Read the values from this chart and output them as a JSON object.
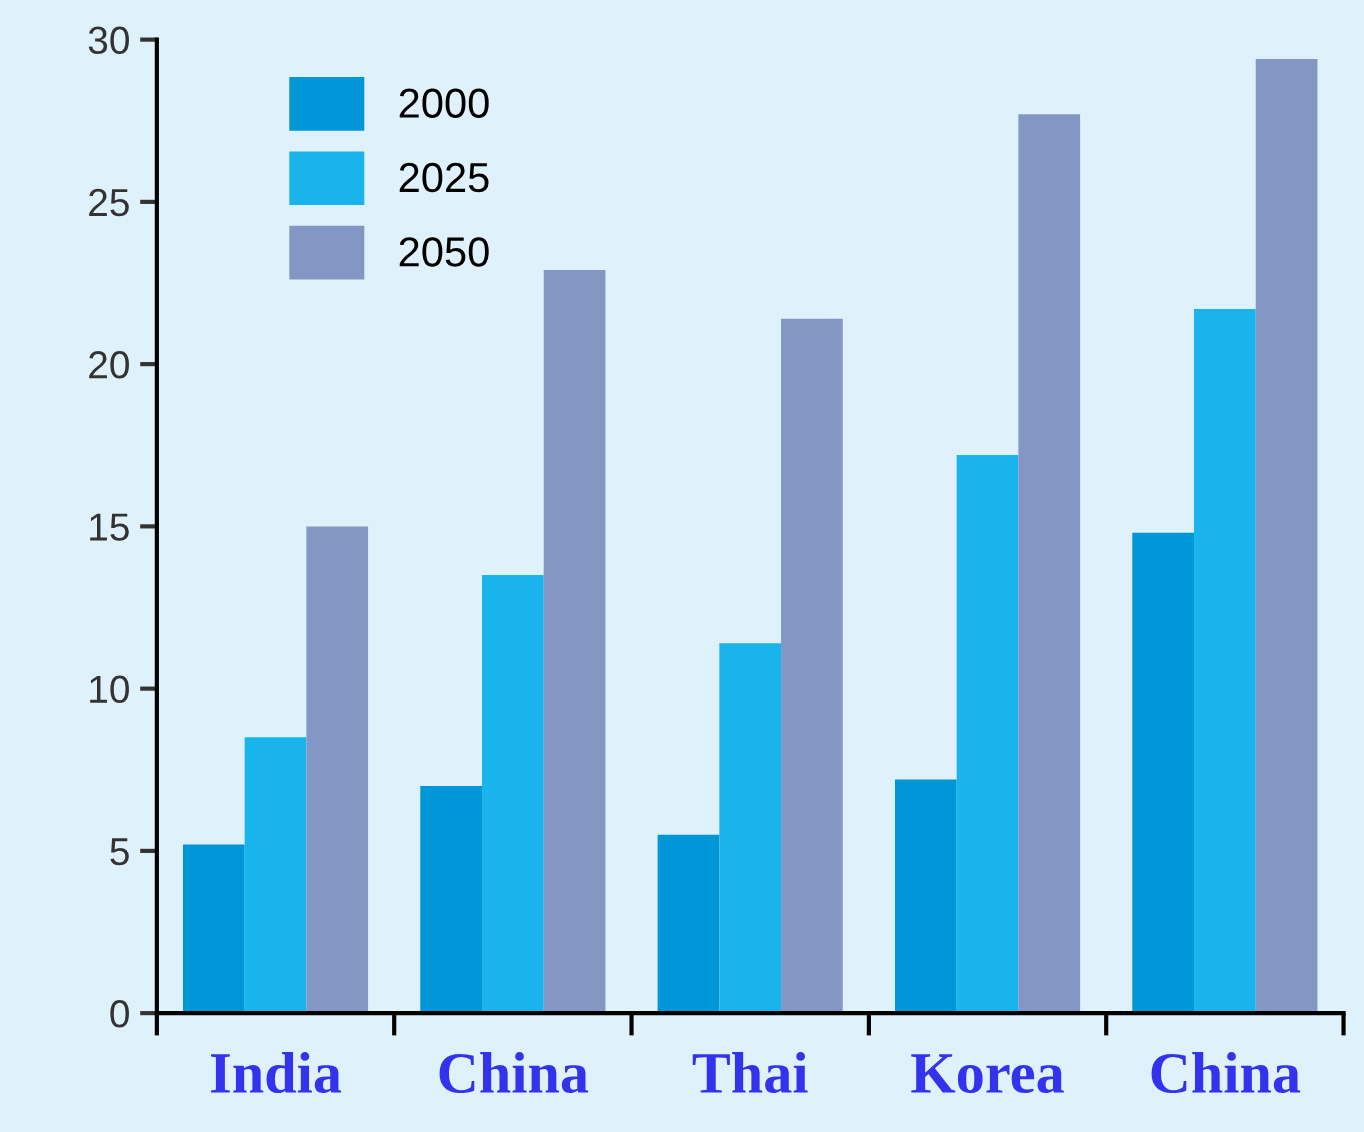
{
  "chart_data": {
    "type": "bar",
    "categories": [
      "India",
      "China",
      "Thai",
      "Korea",
      "China"
    ],
    "series": [
      {
        "name": "2000",
        "color": "#0096d8",
        "values": [
          5.2,
          7.0,
          5.5,
          7.2,
          14.8
        ]
      },
      {
        "name": "2025",
        "color": "#1ab4ec",
        "values": [
          8.5,
          13.5,
          11.4,
          17.2,
          21.7
        ]
      },
      {
        "name": "2050",
        "color": "#8496c4",
        "values": [
          15.0,
          22.9,
          21.4,
          27.7,
          29.4
        ]
      }
    ],
    "ylim": [
      0,
      30
    ],
    "yticks": [
      0,
      5,
      10,
      15,
      20,
      25,
      30
    ],
    "grid": false,
    "legend": "top left"
  }
}
